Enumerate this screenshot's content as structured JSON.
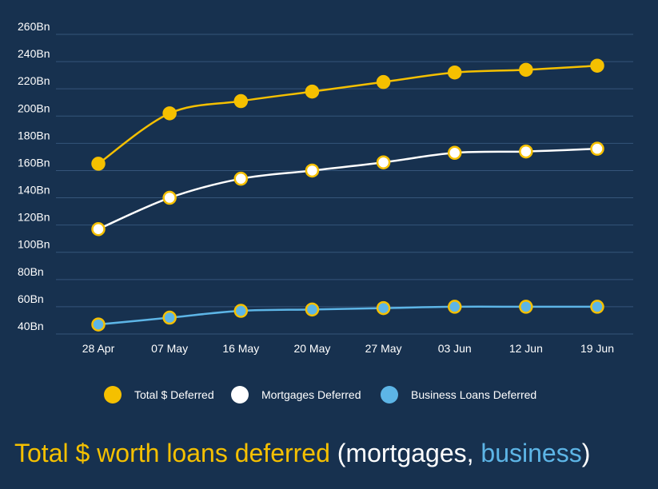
{
  "chart_data": {
    "type": "line",
    "title": [
      "Total $ worth loans deferred",
      "(mortgages,",
      "business",
      ")"
    ],
    "categories": [
      "28 Apr",
      "07 May",
      "16 May",
      "20 May",
      "27 May",
      "03 Jun",
      "12 Jun",
      "19 Jun"
    ],
    "series": [
      {
        "name": "Total $ Deferred",
        "color": "#f5c000",
        "values": [
          165,
          202,
          211,
          218,
          225,
          232,
          234,
          237
        ]
      },
      {
        "name": "Mortgages Deferred",
        "color": "#ffffff",
        "values": [
          117,
          140,
          154,
          160,
          166,
          173,
          174,
          176
        ]
      },
      {
        "name": "Business Loans Deferred",
        "color": "#5db5e6",
        "values": [
          47,
          52,
          57,
          58,
          59,
          60,
          60,
          60
        ]
      }
    ],
    "ylim": [
      40,
      260
    ],
    "yticks": [
      {
        "value": 40,
        "label": "40Bn"
      },
      {
        "value": 60,
        "label": "60Bn"
      },
      {
        "value": 80,
        "label": "80Bn"
      },
      {
        "value": 100,
        "label": "100Bn"
      },
      {
        "value": 120,
        "label": "120Bn"
      },
      {
        "value": 140,
        "label": "140Bn"
      },
      {
        "value": 160,
        "label": "160Bn"
      },
      {
        "value": 180,
        "label": "180Bn"
      },
      {
        "value": 200,
        "label": "200Bn"
      },
      {
        "value": 220,
        "label": "220Bn"
      },
      {
        "value": 240,
        "label": "240Bn"
      },
      {
        "value": 260,
        "label": "260Bn"
      }
    ],
    "grid": true,
    "legend": "bottom"
  }
}
